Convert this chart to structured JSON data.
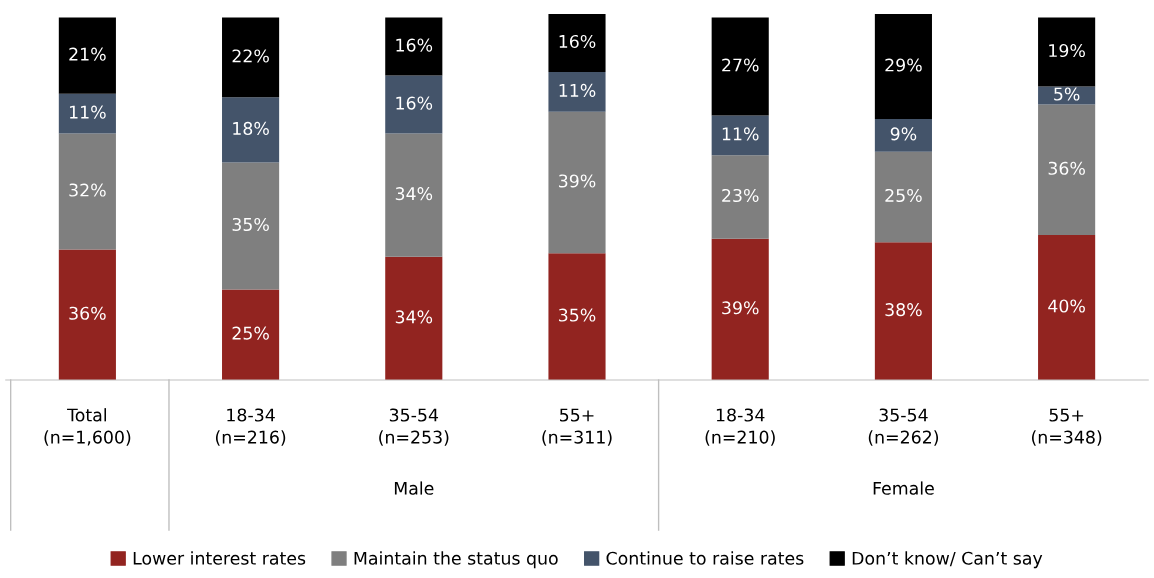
{
  "chart_data": {
    "type": "bar",
    "stacked": true,
    "legend": "bottom",
    "categories": [
      "Total\n(n=1,600)",
      "18-34\n(n=216)",
      "35-54\n(n=253)",
      "55+\n(n=311)",
      "18-34\n(n=210)",
      "35-54\n(n=262)",
      "55+\n(n=348)"
    ],
    "series": [
      {
        "name": "Lower interest rates",
        "color": "#922420",
        "values": [
          36,
          25,
          34,
          35,
          39,
          38,
          40
        ],
        "value_labels": [
          "36%",
          "25%",
          "34%",
          "35%",
          "39%",
          "38%",
          "40%"
        ]
      },
      {
        "name": "Maintain the status quo",
        "color": "#7f7f7f",
        "values": [
          32,
          35,
          34,
          39,
          23,
          25,
          36
        ],
        "value_labels": [
          "32%",
          "35%",
          "34%",
          "39%",
          "23%",
          "25%",
          "36%"
        ]
      },
      {
        "name": "Continue to raise rates",
        "color": "#44546a",
        "values": [
          11,
          18,
          16,
          11,
          11,
          9,
          5
        ],
        "value_labels": [
          "11%",
          "18%",
          "16%",
          "11%",
          "11%",
          "9%",
          "5%"
        ]
      },
      {
        "name": "Don’t know/ Can’t say",
        "color": "#000000",
        "values": [
          21,
          22,
          16,
          16,
          27,
          29,
          19
        ],
        "value_labels": [
          "21%",
          "22%",
          "16%",
          "16%",
          "27%",
          "29%",
          "19%"
        ]
      }
    ],
    "annotations": [
      "Male",
      "Female"
    ]
  }
}
